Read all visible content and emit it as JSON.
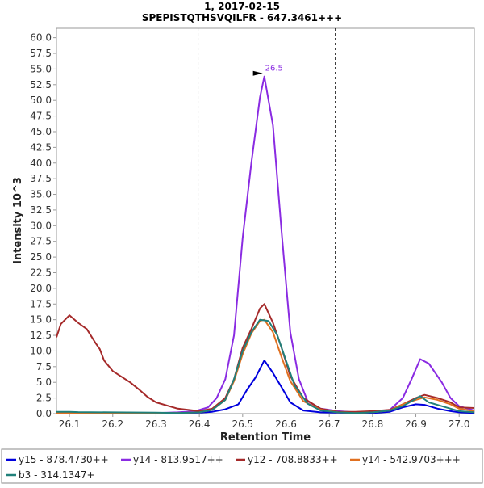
{
  "chart_data": {
    "type": "line",
    "title": "1, 2017-02-15",
    "subtitle": "SPEPISTQTHSVQILFR - 647.3461+++",
    "xlabel": "Retention Time",
    "ylabel": "Intensity 10^3",
    "xlim": [
      26.07,
      27.035
    ],
    "ylim": [
      0,
      61.5
    ],
    "x_ticks": [
      {
        "value": 26.1,
        "label": "26.1"
      },
      {
        "value": 26.2,
        "label": "26.2"
      },
      {
        "value": 26.3,
        "label": "26.3"
      },
      {
        "value": 26.4,
        "label": "26.4"
      },
      {
        "value": 26.5,
        "label": "26.5"
      },
      {
        "value": 26.6,
        "label": "26.6"
      },
      {
        "value": 26.7,
        "label": "26.7"
      },
      {
        "value": 26.8,
        "label": "26.8"
      },
      {
        "value": 26.9,
        "label": "26.9"
      },
      {
        "value": 27.0,
        "label": "27.0"
      }
    ],
    "y_ticks": [
      {
        "value": 0,
        "label": "0.0"
      },
      {
        "value": 2.5,
        "label": "2.5"
      },
      {
        "value": 5,
        "label": "5.0"
      },
      {
        "value": 7.5,
        "label": "7.5"
      },
      {
        "value": 10,
        "label": "10.0"
      },
      {
        "value": 12.5,
        "label": "12.5"
      },
      {
        "value": 15,
        "label": "15.0"
      },
      {
        "value": 17.5,
        "label": "17.5"
      },
      {
        "value": 20,
        "label": "20.0"
      },
      {
        "value": 22.5,
        "label": "22.5"
      },
      {
        "value": 25,
        "label": "25.0"
      },
      {
        "value": 27.5,
        "label": "27.5"
      },
      {
        "value": 30,
        "label": "30.0"
      },
      {
        "value": 32.5,
        "label": "32.5"
      },
      {
        "value": 35,
        "label": "35.0"
      },
      {
        "value": 37.5,
        "label": "37.5"
      },
      {
        "value": 40,
        "label": "40.0"
      },
      {
        "value": 42.5,
        "label": "42.5"
      },
      {
        "value": 45,
        "label": "45.0"
      },
      {
        "value": 47.5,
        "label": "47.5"
      },
      {
        "value": 50,
        "label": "50.0"
      },
      {
        "value": 52.5,
        "label": "52.5"
      },
      {
        "value": 55,
        "label": "55.0"
      },
      {
        "value": 57.5,
        "label": "57.5"
      },
      {
        "value": 60,
        "label": "60.0"
      }
    ],
    "boundaries": [
      26.397,
      26.714
    ],
    "peak_annotation": {
      "x": 26.55,
      "y": 53.8,
      "label": "26.5",
      "color": "#8a2be2"
    },
    "legend_position": "bottom",
    "grid": false,
    "series": [
      {
        "name": "y15 - 878.4730++",
        "color": "#0000dd",
        "x": [
          26.07,
          26.1,
          26.2,
          26.3,
          26.35,
          26.4,
          26.43,
          26.46,
          26.49,
          26.51,
          26.53,
          26.55,
          26.57,
          26.59,
          26.61,
          26.64,
          26.68,
          26.72,
          26.76,
          26.8,
          26.84,
          26.87,
          26.9,
          26.92,
          26.95,
          26.98,
          27.0,
          27.035
        ],
        "y": [
          0.2,
          0.2,
          0.15,
          0.1,
          0.1,
          0.15,
          0.3,
          0.7,
          1.5,
          3.8,
          5.8,
          8.5,
          6.5,
          4.2,
          1.8,
          0.5,
          0.2,
          0.15,
          0.1,
          0.1,
          0.3,
          1.0,
          1.5,
          1.4,
          0.8,
          0.4,
          0.2,
          0.1
        ]
      },
      {
        "name": "y14 - 813.9517++",
        "color": "#8a2be2",
        "x": [
          26.07,
          26.1,
          26.2,
          26.3,
          26.35,
          26.39,
          26.42,
          26.44,
          26.46,
          26.48,
          26.5,
          26.52,
          26.54,
          26.55,
          26.57,
          26.59,
          26.61,
          26.63,
          26.65,
          26.68,
          26.72,
          26.76,
          26.8,
          26.84,
          26.87,
          26.89,
          26.91,
          26.93,
          26.96,
          26.98,
          27.0,
          27.035
        ],
        "y": [
          0.1,
          0.1,
          0.1,
          0.1,
          0.2,
          0.4,
          1.0,
          2.5,
          5.5,
          12.5,
          28.0,
          40.0,
          50.5,
          53.8,
          46.0,
          29.0,
          13.0,
          5.5,
          2.0,
          0.8,
          0.4,
          0.2,
          0.3,
          0.6,
          2.5,
          5.5,
          8.7,
          8.0,
          5.0,
          2.5,
          1.2,
          0.5
        ]
      },
      {
        "name": "y12 - 708.8833++",
        "color": "#a52a2a",
        "x": [
          26.07,
          26.08,
          26.1,
          26.12,
          26.14,
          26.16,
          26.17,
          26.18,
          26.2,
          26.22,
          26.24,
          26.26,
          26.28,
          26.3,
          26.35,
          26.4,
          26.43,
          26.46,
          26.48,
          26.5,
          26.52,
          26.54,
          26.55,
          26.57,
          26.59,
          26.61,
          26.64,
          26.68,
          26.72,
          26.76,
          26.8,
          26.84,
          26.87,
          26.9,
          26.92,
          26.95,
          26.98,
          27.0,
          27.035
        ],
        "y": [
          12.2,
          14.3,
          15.7,
          14.5,
          13.5,
          11.3,
          10.3,
          8.5,
          6.8,
          5.9,
          5.0,
          3.9,
          2.7,
          1.8,
          0.8,
          0.4,
          0.8,
          2.5,
          5.5,
          10.5,
          13.5,
          16.8,
          17.5,
          14.5,
          10.5,
          6.0,
          2.5,
          0.8,
          0.3,
          0.3,
          0.4,
          0.6,
          1.5,
          2.5,
          3.0,
          2.5,
          1.8,
          1.0,
          0.9
        ]
      },
      {
        "name": "y14 - 542.9703+++",
        "color": "#e07020",
        "x": [
          26.07,
          26.2,
          26.35,
          26.4,
          26.43,
          26.46,
          26.48,
          26.5,
          26.52,
          26.54,
          26.55,
          26.57,
          26.59,
          26.61,
          26.64,
          26.68,
          26.72,
          26.76,
          26.8,
          26.84,
          26.87,
          26.9,
          26.92,
          26.95,
          26.98,
          27.0,
          27.035
        ],
        "y": [
          0.1,
          0.1,
          0.1,
          0.2,
          0.6,
          2.2,
          5.2,
          9.5,
          12.8,
          14.8,
          15.0,
          13.0,
          9.0,
          5.2,
          2.0,
          0.6,
          0.2,
          0.1,
          0.2,
          0.5,
          1.5,
          2.2,
          2.6,
          2.2,
          1.5,
          0.8,
          0.4
        ]
      },
      {
        "name": "b3 - 314.1347+",
        "color": "#20807a",
        "x": [
          26.07,
          26.1,
          26.12,
          26.2,
          26.3,
          26.35,
          26.4,
          26.43,
          26.46,
          26.48,
          26.5,
          26.52,
          26.54,
          26.56,
          26.58,
          26.6,
          26.62,
          26.65,
          26.68,
          26.72,
          26.76,
          26.8,
          26.84,
          26.87,
          26.89,
          26.91,
          26.93,
          26.96,
          26.98,
          27.0,
          27.035
        ],
        "y": [
          0.3,
          0.3,
          0.25,
          0.2,
          0.15,
          0.1,
          0.2,
          0.6,
          2.2,
          5.5,
          10.0,
          13.0,
          15.0,
          14.8,
          12.5,
          8.5,
          4.5,
          1.6,
          0.5,
          0.2,
          0.1,
          0.2,
          0.5,
          1.2,
          2.0,
          2.8,
          1.8,
          1.2,
          0.8,
          0.4,
          0.2
        ]
      }
    ]
  }
}
